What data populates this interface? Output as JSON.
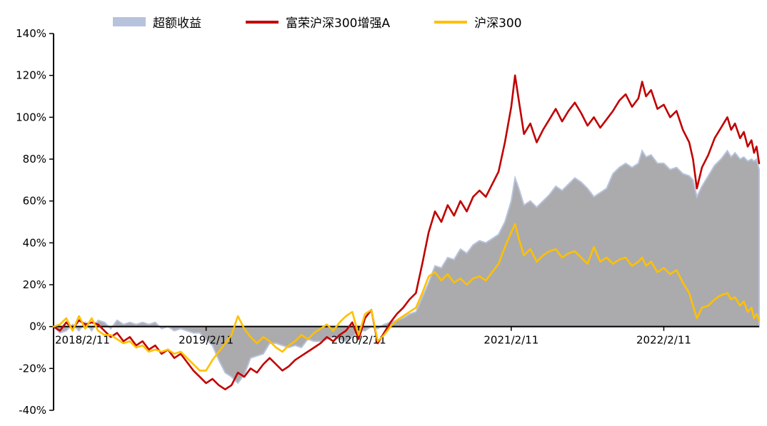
{
  "legend": {
    "items": [
      {
        "label": "超额收益",
        "type": "area",
        "color": "#b7c3dc"
      },
      {
        "label": "富荣沪深300增强A",
        "type": "line",
        "color": "#c00000"
      },
      {
        "label": "沪深300",
        "type": "line",
        "color": "#ffc000"
      }
    ]
  },
  "chart_data": {
    "type": "area+line combo",
    "title": "",
    "background": "#ffffff",
    "grid": false,
    "legend_position": "top",
    "y_axis": {
      "min": -40,
      "max": 140,
      "step": 20,
      "unit": "%",
      "ticks": [
        {
          "v": 140,
          "label": "140%"
        },
        {
          "v": 120,
          "label": "120%"
        },
        {
          "v": 100,
          "label": "100%"
        },
        {
          "v": 80,
          "label": "80%"
        },
        {
          "v": 60,
          "label": "60%"
        },
        {
          "v": 40,
          "label": "40%"
        },
        {
          "v": 20,
          "label": "20%"
        },
        {
          "v": 0,
          "label": "0%"
        },
        {
          "v": -20,
          "label": "-20%"
        },
        {
          "v": -40,
          "label": "-40%"
        }
      ]
    },
    "x_axis": {
      "range_months": [
        0,
        55.5
      ],
      "ticks": [
        {
          "m": 0,
          "label": "2018/2/11"
        },
        {
          "m": 12,
          "label": "2019/2/11"
        },
        {
          "m": 24,
          "label": "2020/2/11"
        },
        {
          "m": 36,
          "label": "2021/2/11"
        },
        {
          "m": 48,
          "label": "2022/2/11"
        }
      ]
    },
    "series": [
      {
        "name": "超额收益",
        "type": "area",
        "fill": "#a6a7aa",
        "stroke": "#b7c3dc",
        "points_column": 3
      },
      {
        "name": "富荣沪深300增强A",
        "type": "line",
        "color": "#c00000",
        "points_column": 1
      },
      {
        "name": "沪深300",
        "type": "line",
        "color": "#ffc000",
        "points_column": 2
      }
    ],
    "points_format": [
      "months_since_2018/2/11",
      "富荣沪深300增强A_pct",
      "沪深300_pct",
      "超额收益_pct"
    ],
    "points": [
      [
        0,
        0,
        0,
        0
      ],
      [
        0.5,
        -2,
        1,
        -3
      ],
      [
        1,
        2,
        4,
        -2
      ],
      [
        1.5,
        -1,
        -2,
        1
      ],
      [
        2,
        3,
        5,
        -2
      ],
      [
        2.5,
        1,
        -1,
        2
      ],
      [
        3,
        2,
        4,
        -2
      ],
      [
        3.5,
        1,
        -2,
        3
      ],
      [
        4,
        -2,
        -4,
        2
      ],
      [
        4.5,
        -5,
        -4,
        -1
      ],
      [
        5,
        -3,
        -6,
        3
      ],
      [
        5.5,
        -7,
        -8,
        1
      ],
      [
        6,
        -5,
        -7,
        2
      ],
      [
        6.5,
        -9,
        -10,
        1
      ],
      [
        7,
        -7,
        -9,
        2
      ],
      [
        7.5,
        -11,
        -12,
        1
      ],
      [
        8,
        -9,
        -11,
        2
      ],
      [
        8.5,
        -13,
        -12,
        -1
      ],
      [
        9,
        -11,
        -11,
        0
      ],
      [
        9.5,
        -15,
        -13,
        -2
      ],
      [
        10,
        -13,
        -12,
        -1
      ],
      [
        10.5,
        -17,
        -15,
        -2
      ],
      [
        11,
        -21,
        -18,
        -3
      ],
      [
        11.5,
        -24,
        -21,
        -3
      ],
      [
        12,
        -27,
        -21,
        -6
      ],
      [
        12.5,
        -25,
        -16,
        -9
      ],
      [
        13,
        -28,
        -12,
        -16
      ],
      [
        13.5,
        -30,
        -8,
        -22
      ],
      [
        14,
        -28,
        -4,
        -24
      ],
      [
        14.5,
        -22,
        5,
        -27
      ],
      [
        15,
        -24,
        -1,
        -23
      ],
      [
        15.5,
        -20,
        -5,
        -15
      ],
      [
        16,
        -22,
        -8,
        -14
      ],
      [
        16.5,
        -18,
        -5,
        -13
      ],
      [
        17,
        -15,
        -7,
        -8
      ],
      [
        17.5,
        -18,
        -10,
        -8
      ],
      [
        18,
        -21,
        -12,
        -9
      ],
      [
        18.5,
        -19,
        -9,
        -10
      ],
      [
        19,
        -16,
        -7,
        -9
      ],
      [
        19.5,
        -14,
        -4,
        -10
      ],
      [
        20,
        -12,
        -6,
        -6
      ],
      [
        20.5,
        -10,
        -3,
        -7
      ],
      [
        21,
        -8,
        -1,
        -7
      ],
      [
        21.5,
        -5,
        1,
        -6
      ],
      [
        22,
        -7,
        -2,
        -5
      ],
      [
        22.5,
        -4,
        2,
        -6
      ],
      [
        23,
        -2,
        5,
        -7
      ],
      [
        23.5,
        2,
        7,
        -5
      ],
      [
        24,
        -6,
        -4,
        -2
      ],
      [
        24.5,
        4,
        6,
        -2
      ],
      [
        25,
        8,
        8,
        0
      ],
      [
        25.5,
        -8,
        -7,
        -1
      ],
      [
        26,
        -3,
        -4,
        1
      ],
      [
        26.5,
        2,
        0,
        2
      ],
      [
        27,
        6,
        3,
        3
      ],
      [
        27.5,
        9,
        5,
        4
      ],
      [
        28,
        13,
        7,
        6
      ],
      [
        28.5,
        16,
        9,
        7
      ],
      [
        29,
        30,
        16,
        14
      ],
      [
        29.5,
        45,
        24,
        21
      ],
      [
        30,
        55,
        26,
        29
      ],
      [
        30.5,
        50,
        22,
        28
      ],
      [
        31,
        58,
        25,
        33
      ],
      [
        31.5,
        53,
        21,
        32
      ],
      [
        32,
        60,
        23,
        37
      ],
      [
        32.5,
        55,
        20,
        35
      ],
      [
        33,
        62,
        23,
        39
      ],
      [
        33.5,
        65,
        24,
        41
      ],
      [
        34,
        62,
        22,
        40
      ],
      [
        34.5,
        68,
        26,
        42
      ],
      [
        35,
        74,
        30,
        44
      ],
      [
        35.5,
        88,
        38,
        50
      ],
      [
        36,
        105,
        45,
        60
      ],
      [
        36.3,
        120,
        49,
        71
      ],
      [
        36.6,
        108,
        42,
        66
      ],
      [
        37,
        92,
        34,
        58
      ],
      [
        37.5,
        97,
        37,
        60
      ],
      [
        38,
        88,
        31,
        57
      ],
      [
        38.5,
        94,
        34,
        60
      ],
      [
        39,
        99,
        36,
        63
      ],
      [
        39.5,
        104,
        37,
        67
      ],
      [
        40,
        98,
        33,
        65
      ],
      [
        40.5,
        103,
        35,
        68
      ],
      [
        41,
        107,
        36,
        71
      ],
      [
        41.5,
        102,
        33,
        69
      ],
      [
        42,
        96,
        30,
        66
      ],
      [
        42.5,
        100,
        38,
        62
      ],
      [
        43,
        95,
        31,
        64
      ],
      [
        43.5,
        99,
        33,
        66
      ],
      [
        44,
        103,
        30,
        73
      ],
      [
        44.5,
        108,
        32,
        76
      ],
      [
        45,
        111,
        33,
        78
      ],
      [
        45.5,
        105,
        29,
        76
      ],
      [
        46,
        109,
        31,
        78
      ],
      [
        46.3,
        117,
        33,
        84
      ],
      [
        46.6,
        110,
        29,
        81
      ],
      [
        47,
        113,
        31,
        82
      ],
      [
        47.5,
        104,
        26,
        78
      ],
      [
        48,
        106,
        28,
        78
      ],
      [
        48.5,
        100,
        25,
        75
      ],
      [
        49,
        103,
        27,
        76
      ],
      [
        49.5,
        94,
        21,
        73
      ],
      [
        50,
        88,
        16,
        72
      ],
      [
        50.3,
        80,
        10,
        70
      ],
      [
        50.6,
        66,
        4,
        62
      ],
      [
        51,
        76,
        9,
        67
      ],
      [
        51.5,
        82,
        10,
        72
      ],
      [
        52,
        90,
        13,
        77
      ],
      [
        52.5,
        95,
        15,
        80
      ],
      [
        53,
        100,
        16,
        84
      ],
      [
        53.3,
        94,
        13,
        81
      ],
      [
        53.6,
        97,
        14,
        83
      ],
      [
        54,
        90,
        10,
        80
      ],
      [
        54.3,
        93,
        12,
        81
      ],
      [
        54.6,
        86,
        7,
        79
      ],
      [
        54.9,
        89,
        9,
        80
      ],
      [
        55.1,
        83,
        4,
        79
      ],
      [
        55.3,
        86,
        6,
        80
      ],
      [
        55.5,
        78,
        3,
        75
      ]
    ]
  }
}
